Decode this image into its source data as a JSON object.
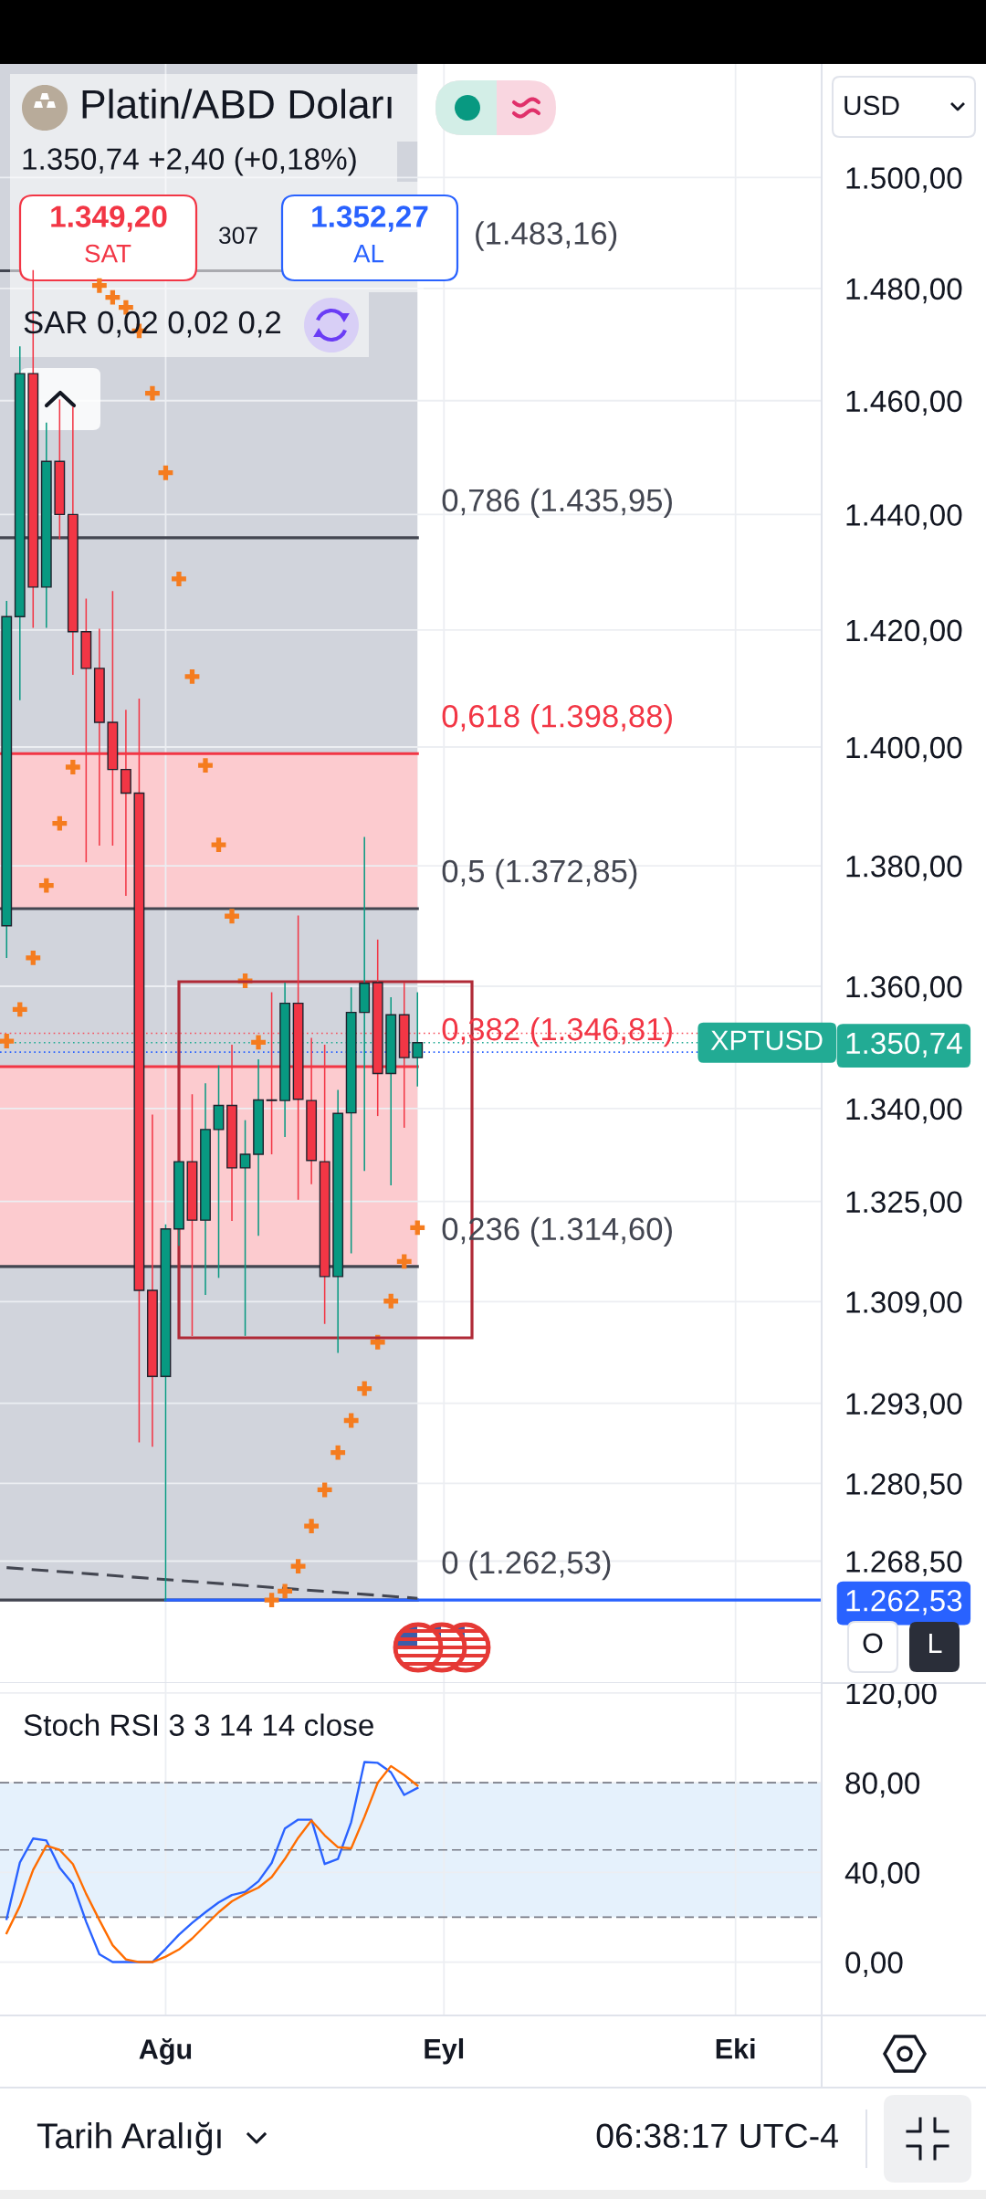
{
  "chart_data": [
    {
      "type": "candlestick",
      "title": "Platin/ABD Doları",
      "subtitle": "1.350,74 +2,40 (+0,18%)",
      "categories": [
        null,
        null,
        null,
        null,
        null,
        null,
        null,
        null,
        null,
        null,
        null,
        null,
        null,
        null,
        null,
        null,
        null,
        null,
        null,
        null,
        null,
        null,
        null,
        null,
        null,
        null,
        null,
        null,
        null,
        null,
        null,
        null,
        null,
        null,
        null,
        null,
        null,
        null,
        null,
        null,
        null,
        null,
        null,
        null,
        null,
        null,
        null,
        null,
        null,
        null,
        null,
        null,
        null,
        null,
        null,
        null,
        null,
        null,
        null,
        null,
        null,
        null
      ],
      "ohlc": [
        [
          1370.0,
          1424.9,
          1364.8,
          1422.3
        ],
        [
          1422.3,
          1469.5,
          1408.1,
          1464.8
        ],
        [
          1464.8,
          1483.16,
          1420.5,
          1427.4
        ],
        [
          1427.4,
          1456.0,
          1420.5,
          1449.3
        ],
        [
          1449.3,
          1460.1,
          1435.8,
          1440.0
        ],
        [
          1440.0,
          1458.8,
          1412.4,
          1419.7
        ],
        [
          1419.7,
          1425.3,
          1380.7,
          1413.4
        ],
        [
          1413.4,
          1420.1,
          1383.5,
          1404.2
        ],
        [
          1404.2,
          1426.6,
          1383.5,
          1396.2
        ],
        [
          1396.2,
          1406.2,
          1375.1,
          1392.2
        ],
        [
          1392.2,
          1408.1,
          1287.0,
          1310.8
        ],
        [
          1310.8,
          1338.9,
          1286.3,
          1297.2
        ],
        [
          1297.2,
          1321.2,
          1262.53,
          1320.6
        ],
        [
          1320.6,
          1331.4,
          1318.0,
          1331.4
        ],
        [
          1331.4,
          1342.2,
          1303.7,
          1322.0
        ],
        [
          1322.0,
          1344.0,
          1310.2,
          1336.6
        ],
        [
          1336.6,
          1346.9,
          1312.9,
          1340.5
        ],
        [
          1340.5,
          1350.3,
          1322.0,
          1330.4
        ],
        [
          1330.4,
          1338.0,
          1303.7,
          1332.6
        ],
        [
          1332.6,
          1347.9,
          1319.6,
          1341.4
        ],
        [
          1341.4,
          1358.9,
          1332.7,
          1341.3
        ],
        [
          1341.3,
          1360.5,
          1335.5,
          1357.2
        ],
        [
          1357.2,
          1371.6,
          1325.4,
          1341.5
        ],
        [
          1341.3,
          1351.4,
          1327.9,
          1331.6
        ],
        [
          1331.4,
          1350.3,
          1305.6,
          1313.0
        ],
        [
          1313.0,
          1342.9,
          1301.0,
          1339.2
        ],
        [
          1339.3,
          1359.7,
          1316.8,
          1355.7
        ],
        [
          1355.7,
          1384.7,
          1330.0,
          1360.5
        ],
        [
          1360.6,
          1367.6,
          1338.9,
          1345.7
        ],
        [
          1345.7,
          1358.1,
          1327.7,
          1355.3
        ],
        [
          1355.3,
          1360.5,
          1337.0,
          1348.3
        ],
        [
          1348.3,
          1358.9,
          1343.7,
          1350.74
        ],
        null,
        null,
        null,
        null,
        null,
        null,
        null,
        null,
        null,
        null,
        null,
        null,
        null,
        null,
        null,
        null,
        null,
        null,
        null,
        null,
        null,
        null,
        null,
        null,
        null,
        null,
        null,
        null,
        null,
        null
      ],
      "colors": [
        "#089981",
        "#089981",
        "#f23645",
        "#089981",
        "#f23645",
        "#f23645",
        "#f23645",
        "#f23645",
        "#f23645",
        "#f23645",
        "#f23645",
        "#f23645",
        "#089981",
        "#089981",
        "#f23645",
        "#089981",
        "#089981",
        "#f23645",
        "#089981",
        "#089981",
        "#f23645",
        "#089981",
        "#f23645",
        "#f23645",
        "#f23645",
        "#089981",
        "#089981",
        "#089981",
        "#f23645",
        "#089981",
        "#f23645",
        "#089981",
        null,
        null,
        null,
        null,
        null,
        null,
        null,
        null,
        null,
        null,
        null,
        null,
        null,
        null,
        null,
        null,
        null,
        null,
        null,
        null,
        null,
        null,
        null,
        null,
        null,
        null,
        null,
        null,
        null,
        null
      ],
      "series": [
        {
          "type": "scatter",
          "color": "#f57c1f",
          "marker": "cross",
          "values": [
            1351.0,
            1356.2,
            1364.7,
            1376.7,
            1387.1,
            1396.6,
            null,
            1480.5,
            1478.4,
            1476.6,
            1472.4,
            1461.3,
            1447.3,
            1428.8,
            1412.0,
            1396.9,
            1383.5,
            1371.6,
            1360.9,
            1350.8,
            1262.53,
            1263.9,
            1267.7,
            1273.9,
            1279.5,
            1285.3,
            1290.3,
            1295.3,
            1302.6,
            1309.1,
            1315.4,
            1320.8,
            null,
            null,
            null,
            null,
            null,
            null,
            null,
            null,
            null,
            null,
            null,
            null,
            null,
            null,
            null,
            null,
            null,
            null,
            null,
            null,
            null,
            null,
            null,
            null,
            null,
            null,
            null,
            null,
            null,
            null
          ]
        },
        {
          "type": "line",
          "color": "#434651",
          "line_style": "dashed",
          "values": [
            1267.5,
            null,
            null,
            null,
            null,
            null,
            null,
            null,
            null,
            null,
            null,
            null,
            null,
            null,
            null,
            null,
            null,
            null,
            null,
            null,
            null,
            null,
            null,
            null,
            null,
            null,
            null,
            null,
            null,
            null,
            null,
            1262.8,
            null,
            null,
            null,
            null,
            null,
            null,
            null,
            null,
            null,
            null,
            null,
            null,
            null,
            null,
            null,
            null,
            null,
            null,
            null,
            null,
            null,
            null,
            null,
            null,
            null,
            null,
            null,
            null,
            null,
            null
          ]
        }
      ],
      "log": true,
      "ylim": [
        1249.9,
        1520.8
      ],
      "yticks": [
        {
          "value": 1500,
          "label": "1.500,00"
        },
        {
          "value": 1480,
          "label": "1.480,00"
        },
        {
          "value": 1460,
          "label": "1.460,00"
        },
        {
          "value": 1440,
          "label": "1.440,00"
        },
        {
          "value": 1420,
          "label": "1.420,00"
        },
        {
          "value": 1400,
          "label": "1.400,00"
        },
        {
          "value": 1380,
          "label": "1.380,00"
        },
        {
          "value": 1360,
          "label": "1.360,00"
        },
        {
          "value": 1340,
          "label": "1.340,00"
        },
        {
          "value": 1325,
          "label": "1.325,00"
        },
        {
          "value": 1309,
          "label": "1.309,00"
        },
        {
          "value": 1293,
          "label": "1.293,00"
        },
        {
          "value": 1280.5,
          "label": "1.280,50"
        },
        {
          "value": 1268.5,
          "label": "1.268,50"
        },
        {
          "value": 1350.74,
          "label": "1.350,74"
        },
        {
          "value": 1262.53,
          "label": "1.262,53"
        }
      ],
      "ref_lines": [
        {
          "axis": "y",
          "value": 1262.53,
          "label": "0 (1.262,53)",
          "color": "#434651"
        },
        {
          "axis": "y",
          "value": 1314.6,
          "label": "0,236 (1.314,60)",
          "color": "#434651"
        },
        {
          "axis": "y",
          "value": 1346.81,
          "label": "0,382 (1.346,81)",
          "color": "#f23645"
        },
        {
          "axis": "y",
          "value": 1372.85,
          "label": "0,5 (1.372,85)",
          "color": "#434651"
        },
        {
          "axis": "y",
          "value": 1398.88,
          "label": "0,618 (1.398,88)",
          "color": "#f23645"
        },
        {
          "axis": "y",
          "value": 1435.95,
          "label": "0,786 (1.435,95)",
          "color": "#434651"
        },
        {
          "axis": "y",
          "value": 1483.16,
          "label": "(1.483,16)",
          "color": "#434651"
        },
        {
          "axis": "y",
          "value": 1352.27,
          "color": "#f7525f",
          "line_style": "dotted"
        },
        {
          "axis": "y",
          "value": 1350.74,
          "color": "#22ab94",
          "line_style": "dotted"
        },
        {
          "axis": "y",
          "value": 1349.2,
          "color": "#2962ff",
          "line_style": "dotted"
        },
        {
          "axis": "y",
          "value": 1262.53,
          "color": "#2962ff"
        }
      ],
      "bands": [
        {
          "axis": "y",
          "from": 1262.53,
          "to": 1520.8,
          "color": "#d1d4dc"
        },
        {
          "axis": "y",
          "from": 1314.6,
          "to": 1346.81,
          "color": "#fccbcf"
        },
        {
          "axis": "y",
          "from": 1372.85,
          "to": 1398.88,
          "color": "#fccbcf"
        }
      ],
      "grid": true,
      "tick_labels": "y",
      "annotations": [
        "1.349,20",
        "SAT",
        "307",
        "1.352,27",
        "AL",
        "SAR 0,02 0,02 0,2",
        "USD",
        "O",
        "L",
        "XPTUSD"
      ]
    },
    {
      "type": "line",
      "title": "Stoch RSI 3 3 14 14 close",
      "categories": [
        null,
        null,
        null,
        null,
        null,
        null,
        null,
        null,
        null,
        null,
        null,
        null,
        "Ağu",
        null,
        null,
        null,
        null,
        null,
        null,
        null,
        null,
        null,
        null,
        null,
        null,
        null,
        null,
        null,
        null,
        null,
        null,
        null,
        null,
        "Eyl",
        null,
        null,
        null,
        null,
        null,
        null,
        null,
        null,
        null,
        null,
        null,
        null,
        null,
        null,
        null,
        null,
        null,
        null,
        null,
        null,
        null,
        "Eki",
        null,
        null,
        null,
        null,
        null,
        null
      ],
      "series": [
        {
          "color": "#2962ff",
          "values": [
            19.2,
            44.4,
            55.1,
            54.2,
            42.1,
            34.8,
            18.0,
            3.5,
            0.0,
            0.0,
            0.0,
            0.0,
            5.9,
            12.2,
            17.5,
            22.2,
            26.6,
            29.9,
            31.3,
            36.0,
            44.2,
            59.6,
            63.5,
            63.5,
            43.7,
            46.0,
            62.4,
            89.2,
            88.8,
            84.6,
            74.5,
            77.6,
            null,
            null,
            null,
            null,
            null,
            null,
            null,
            null,
            null,
            null,
            null,
            null,
            null,
            null,
            null,
            null,
            null,
            null,
            null,
            null,
            null,
            null,
            null,
            null,
            null,
            null,
            null,
            null,
            null,
            null
          ]
        },
        {
          "color": "#ff6d00",
          "values": [
            12.9,
            25.0,
            41.1,
            51.9,
            50.0,
            43.7,
            30.4,
            18.7,
            7.5,
            1.2,
            0.0,
            0.0,
            2.4,
            5.6,
            10.5,
            16.4,
            22.2,
            27.1,
            30.4,
            33.2,
            37.9,
            46.0,
            55.4,
            63.1,
            56.5,
            51.2,
            50.7,
            64.7,
            79.9,
            87.4,
            83.4,
            78.7,
            null,
            null,
            null,
            null,
            null,
            null,
            null,
            null,
            null,
            null,
            null,
            null,
            null,
            null,
            null,
            null,
            null,
            null,
            null,
            null,
            null,
            null,
            null,
            null,
            null,
            null,
            null,
            null,
            null,
            null
          ]
        }
      ],
      "ylim": [
        -23.8,
        124.4
      ],
      "yticks": [
        {
          "value": 120,
          "label": "120,00"
        },
        {
          "value": 80,
          "label": "80,00"
        },
        {
          "value": 40,
          "label": "40,00"
        },
        {
          "value": 0,
          "label": "0,00"
        }
      ],
      "ref_lines": [
        {
          "axis": "y",
          "value": 80,
          "color": "#787b86",
          "line_style": "dashed"
        },
        {
          "axis": "y",
          "value": 50,
          "color": "#787b86",
          "line_style": "dashed"
        },
        {
          "axis": "y",
          "value": 20,
          "color": "#787b86",
          "line_style": "dashed"
        }
      ],
      "bands": [
        {
          "axis": "y",
          "from": 20,
          "to": 80,
          "color": "#e5f1fc"
        }
      ],
      "grid": true,
      "annotations": [
        "Tarih Aralığı",
        "06:38:17 UTC-4"
      ]
    }
  ]
}
